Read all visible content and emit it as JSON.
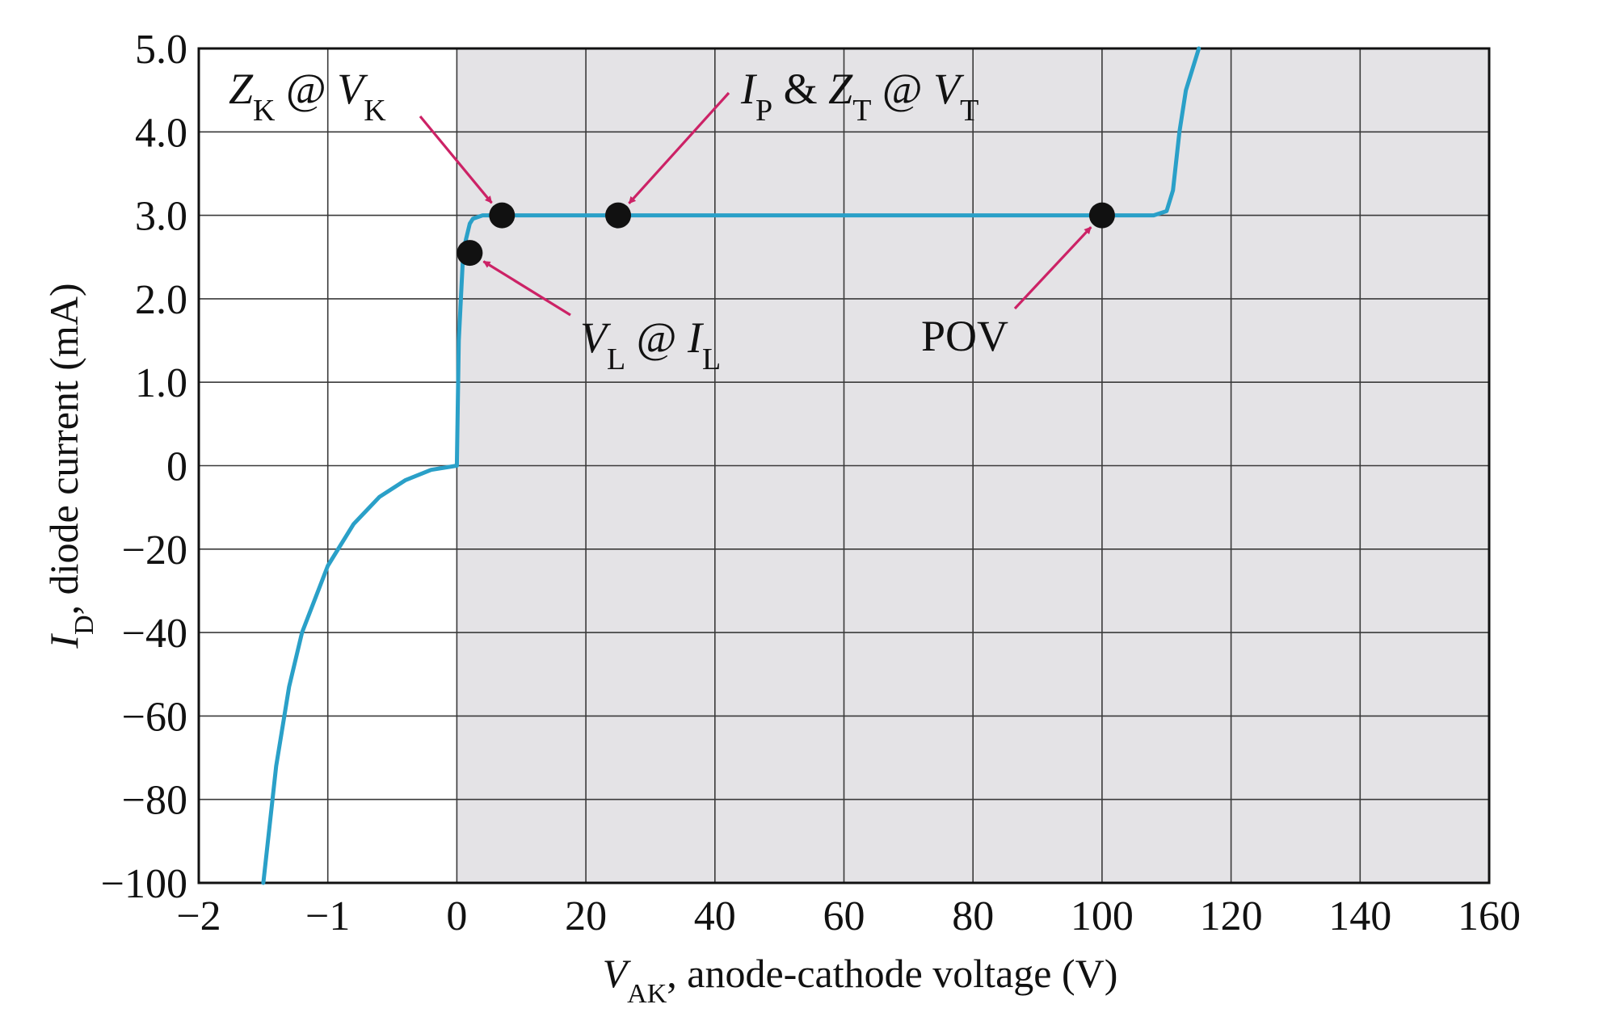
{
  "chart_data": {
    "type": "line",
    "title": "",
    "xlabel": {
      "var": "V",
      "sub": "AK",
      "rest": ", anode-cathode voltage (V)"
    },
    "ylabel": {
      "var": "I",
      "sub": "D",
      "rest": ", diode current (mA)"
    },
    "x_tick_labels": [
      "−2",
      "−1",
      "0",
      "20",
      "40",
      "60",
      "80",
      "100",
      "120",
      "140",
      "160"
    ],
    "y_tick_labels": [
      "−100",
      "−80",
      "−60",
      "−40",
      "−20",
      "0",
      "1.0",
      "2.0",
      "3.0",
      "4.0",
      "5.0"
    ],
    "x_scale": "piecewise: -2 to 0 V linear at 1 V per division; 0 to 160 V linear at 20 V per division",
    "y_scale": "piecewise: -100 to 0 mA linear at 20 mA per division; 0 to 5.0 mA linear at 1.0 mA per division",
    "grid": true,
    "shaded_region": "V_AK >= 0",
    "colors": {
      "curve": "#2aa0c8",
      "annotation": "#cc2266",
      "point": "#111111",
      "shade": "#e4e3e6",
      "grid": "#3a3a3a"
    },
    "series": [
      {
        "x": [
          -1.5,
          -1.4,
          -1.3,
          -1.2,
          -1.0,
          -0.8,
          -0.6,
          -0.4,
          -0.2,
          0,
          0.3,
          1.0,
          2.0,
          2.5,
          4.0,
          7.0,
          25,
          60,
          100,
          108,
          110,
          111,
          112,
          113,
          115
        ],
        "y": [
          -100,
          -72,
          -53,
          -40,
          -24,
          -14,
          -7.5,
          -3.5,
          -1.0,
          0,
          1.5,
          2.58,
          2.9,
          2.96,
          3.0,
          3.0,
          3.0,
          3.0,
          3.0,
          3.0,
          3.05,
          3.3,
          4.0,
          4.5,
          5.0
        ]
      }
    ],
    "points": [
      {
        "x": 7,
        "y": 3.0
      },
      {
        "x": 25,
        "y": 3.0
      },
      {
        "x": 2,
        "y": 2.55
      },
      {
        "x": 100,
        "y": 3.0
      }
    ],
    "annotations": [
      {
        "parts": [
          [
            "Z",
            "i"
          ],
          [
            "K",
            "s"
          ],
          [
            " @ ",
            "n"
          ],
          [
            "V",
            "i"
          ],
          [
            "K",
            "s"
          ]
        ],
        "target_x": 7,
        "target_y": 3.0
      },
      {
        "parts": [
          [
            "I",
            "i"
          ],
          [
            "P",
            "s"
          ],
          [
            " & ",
            "n"
          ],
          [
            "Z",
            "i"
          ],
          [
            "T",
            "s"
          ],
          [
            " @ ",
            "n"
          ],
          [
            "V",
            "i"
          ],
          [
            "T",
            "s"
          ]
        ],
        "target_x": 25,
        "target_y": 3.0
      },
      {
        "parts": [
          [
            "V",
            "i"
          ],
          [
            "L",
            "s"
          ],
          [
            " @ ",
            "n"
          ],
          [
            "I",
            "i"
          ],
          [
            "L",
            "s"
          ]
        ],
        "target_x": 2,
        "target_y": 2.55
      },
      {
        "parts": [
          [
            "POV",
            "n"
          ]
        ],
        "target_x": 100,
        "target_y": 3.0
      }
    ]
  }
}
